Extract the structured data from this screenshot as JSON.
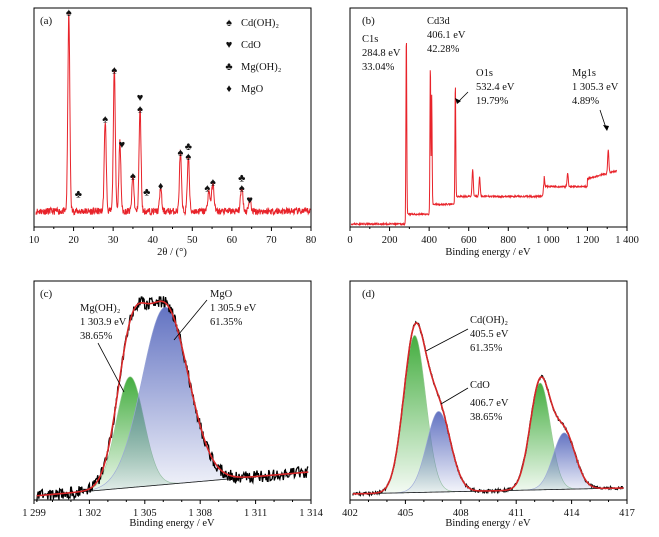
{
  "chart_data": [
    {
      "panel": "(a)",
      "type": "line",
      "xlabel": "2θ / (°)",
      "xlim": [
        10,
        80
      ],
      "xticks": [
        10,
        20,
        30,
        40,
        50,
        60,
        70,
        80
      ],
      "baseline": 0.08,
      "peaks": [
        {
          "x": 18.8,
          "h": 1.0,
          "w": 0.25
        },
        {
          "x": 28.0,
          "h": 0.46,
          "w": 0.25
        },
        {
          "x": 30.3,
          "h": 0.72,
          "w": 0.25
        },
        {
          "x": 31.7,
          "h": 0.35,
          "w": 0.25
        },
        {
          "x": 35.0,
          "h": 0.18,
          "w": 0.25
        },
        {
          "x": 36.8,
          "h": 0.52,
          "w": 0.25
        },
        {
          "x": 42.0,
          "h": 0.12,
          "w": 0.25
        },
        {
          "x": 47.0,
          "h": 0.3,
          "w": 0.25
        },
        {
          "x": 49.0,
          "h": 0.28,
          "w": 0.25
        },
        {
          "x": 54.2,
          "h": 0.1,
          "w": 0.3
        },
        {
          "x": 55.2,
          "h": 0.14,
          "w": 0.3
        },
        {
          "x": 62.5,
          "h": 0.12,
          "w": 0.3
        },
        {
          "x": 64.5,
          "h": 0.06,
          "w": 0.3
        }
      ],
      "markers": [
        {
          "x": 18.8,
          "y": 1.07,
          "sym": "♠"
        },
        {
          "x": 28.0,
          "y": 0.53,
          "sym": "♠"
        },
        {
          "x": 30.3,
          "y": 0.78,
          "sym": "♠"
        },
        {
          "x": 32.2,
          "y": 0.4,
          "sym": "♥"
        },
        {
          "x": 35.0,
          "y": 0.24,
          "sym": "♠"
        },
        {
          "x": 36.8,
          "y": 0.64,
          "sym": "♥"
        },
        {
          "x": 36.8,
          "y": 0.58,
          "sym": "♠"
        },
        {
          "x": 38.5,
          "y": 0.16,
          "sym": "♣"
        },
        {
          "x": 21.2,
          "y": 0.15,
          "sym": "♣"
        },
        {
          "x": 42.0,
          "y": 0.19,
          "sym": "♦"
        },
        {
          "x": 47.0,
          "y": 0.36,
          "sym": "♠"
        },
        {
          "x": 49.0,
          "y": 0.39,
          "sym": "♣"
        },
        {
          "x": 49.0,
          "y": 0.34,
          "sym": "♠"
        },
        {
          "x": 53.8,
          "y": 0.18,
          "sym": "♠"
        },
        {
          "x": 55.2,
          "y": 0.21,
          "sym": "♠"
        },
        {
          "x": 62.5,
          "y": 0.23,
          "sym": "♣"
        },
        {
          "x": 62.5,
          "y": 0.18,
          "sym": "♠"
        },
        {
          "x": 64.5,
          "y": 0.12,
          "sym": "♥"
        }
      ],
      "legend": [
        {
          "sym": "♠",
          "label": "Cd(OH)₂"
        },
        {
          "sym": "♥",
          "label": "CdO"
        },
        {
          "sym": "♣",
          "label": "Mg(OH)₂"
        },
        {
          "sym": "♦",
          "label": "MgO"
        }
      ],
      "color": "#e8232a"
    },
    {
      "panel": "(b)",
      "type": "line",
      "xlabel": "Binding energy / eV",
      "xlim": [
        0,
        1400
      ],
      "xticks": [
        0,
        200,
        400,
        600,
        800,
        1000,
        1200,
        1400
      ],
      "xtick_labels": [
        "0",
        "200",
        "400",
        "600",
        "800",
        "1 000",
        "1 200",
        "1 400"
      ],
      "peaks": [
        {
          "x": 284.8,
          "h": 0.92,
          "w": 2
        },
        {
          "x": 406.1,
          "h": 0.76,
          "w": 2
        },
        {
          "x": 413,
          "h": 0.55,
          "w": 2
        },
        {
          "x": 532.4,
          "h": 0.58,
          "w": 2
        },
        {
          "x": 620,
          "h": 0.14,
          "w": 3
        },
        {
          "x": 655,
          "h": 0.1,
          "w": 3
        },
        {
          "x": 980,
          "h": 0.06,
          "w": 3
        },
        {
          "x": 1100,
          "h": 0.07,
          "w": 3
        },
        {
          "x": 1305.3,
          "h": 0.12,
          "w": 3
        }
      ],
      "annotations": [
        {
          "lines": [
            "C1s",
            "284.8 eV",
            "33.04%"
          ]
        },
        {
          "lines": [
            "Cd3d",
            "406.1 eV",
            "42.28%"
          ]
        },
        {
          "lines": [
            "O1s",
            "532.4 eV",
            "19.79%"
          ]
        },
        {
          "lines": [
            "Mg1s",
            "1 305.3 eV",
            "4.89%"
          ]
        }
      ],
      "color": "#e8232a"
    },
    {
      "panel": "(c)",
      "type": "area",
      "xlabel": "Binding energy / eV",
      "xlim": [
        1299,
        1314
      ],
      "xticks": [
        1299,
        1302,
        1305,
        1308,
        1311,
        1314
      ],
      "xtick_labels": [
        "1 299",
        "1 302",
        "1 305",
        "1 308",
        "1 311",
        "1 314"
      ],
      "series": [
        {
          "name": "Mg(OH)₂",
          "center": 1304.2,
          "height": 0.55,
          "sigma": 0.75,
          "color": "#4caf50"
        },
        {
          "name": "MgO",
          "center": 1306.1,
          "height": 0.88,
          "sigma": 1.25,
          "color": "#6a7bc4"
        }
      ],
      "annotations": [
        {
          "lines": [
            "Mg(OH)₂",
            "1 303.9 eV",
            "38.65%"
          ]
        },
        {
          "lines": [
            "MgO",
            "1 305.9 eV",
            "61.35%"
          ]
        }
      ]
    },
    {
      "panel": "(d)",
      "type": "area",
      "xlabel": "Binding energy / eV",
      "xlim": [
        402,
        417
      ],
      "xticks": [
        402,
        405,
        408,
        411,
        414,
        417
      ],
      "xtick_labels": [
        "402",
        "405",
        "408",
        "411",
        "414",
        "417"
      ],
      "series": [
        {
          "name": "Cd(OH)₂",
          "center": 405.5,
          "height": 0.78,
          "sigma": 0.6,
          "color": "#4caf50"
        },
        {
          "name": "CdO",
          "center": 406.8,
          "height": 0.4,
          "sigma": 0.65,
          "color": "#6a7bc4"
        },
        {
          "name": "",
          "center": 412.3,
          "height": 0.53,
          "sigma": 0.55,
          "color": "#4caf50"
        },
        {
          "name": "",
          "center": 413.6,
          "height": 0.28,
          "sigma": 0.6,
          "color": "#6a7bc4"
        }
      ],
      "annotations": [
        {
          "lines": [
            "Cd(OH)₂",
            "405.5 eV",
            "61.35%"
          ]
        },
        {
          "lines": [
            "CdO",
            "406.7 eV",
            "38.65%"
          ]
        }
      ]
    }
  ]
}
